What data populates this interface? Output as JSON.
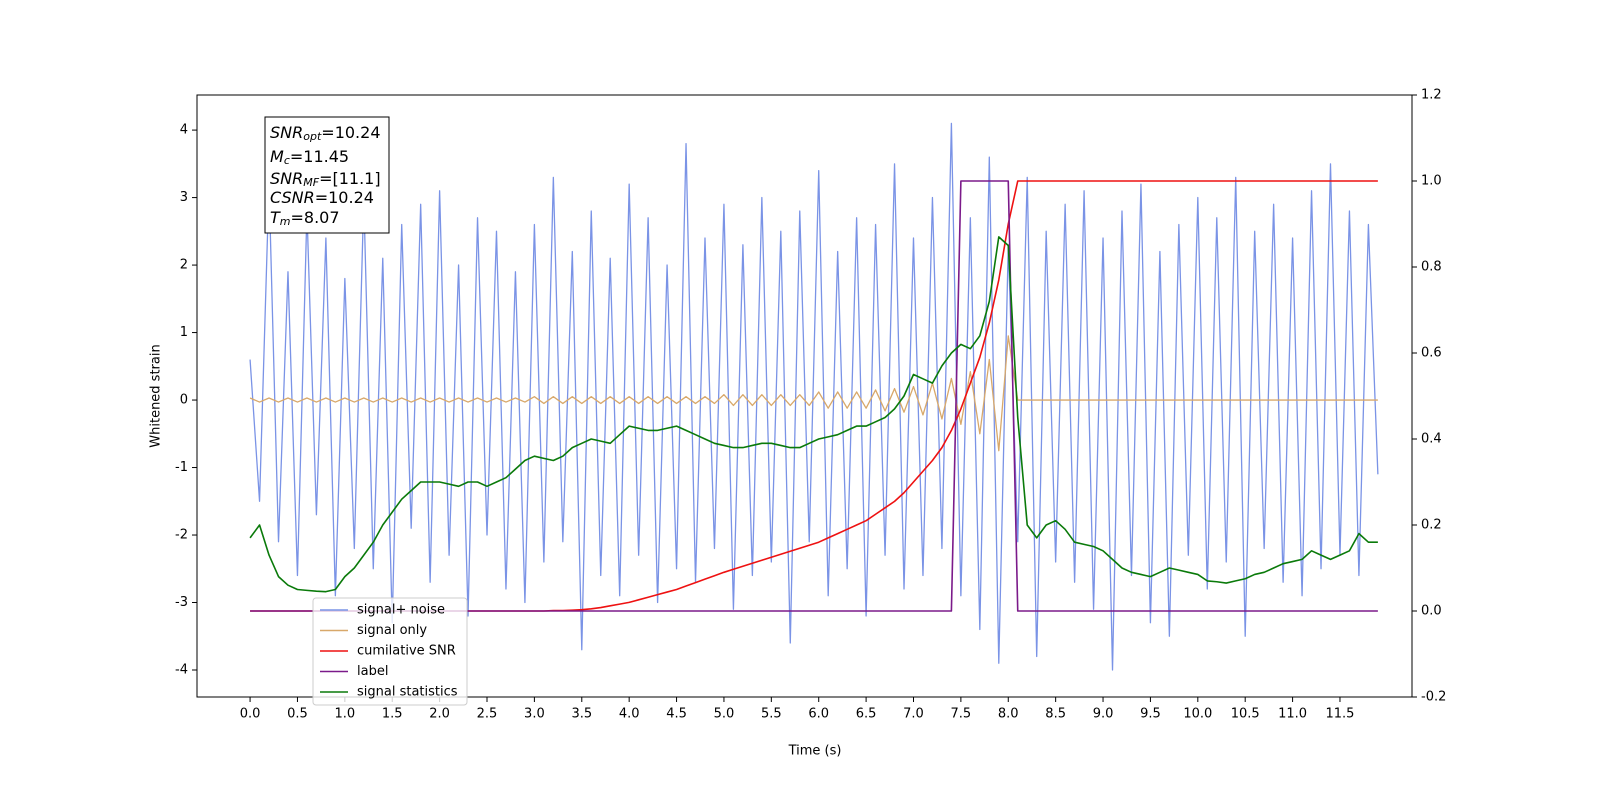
{
  "chart_data": {
    "type": "line",
    "xlabel": "Time (s)",
    "ylabel": "Whitened strain",
    "xlim": [
      -0.56,
      12.26
    ],
    "ylim": [
      -4.4,
      4.52
    ],
    "y2lim": [
      -0.2,
      1.2
    ],
    "xticks": [
      {
        "value": 0,
        "label": "0.0"
      },
      0.5,
      {
        "value": 1,
        "label": "1.0"
      },
      1.5,
      {
        "value": 2,
        "label": "2.0"
      },
      2.5,
      {
        "value": 3,
        "label": "3.0"
      },
      3.5,
      {
        "value": 4,
        "label": "4.0"
      },
      4.5,
      {
        "value": 5,
        "label": "5.0"
      },
      5.5,
      {
        "value": 6,
        "label": "6.0"
      },
      6.5,
      {
        "value": 7,
        "label": "7.0"
      },
      7.5,
      {
        "value": 8,
        "label": "8.0"
      },
      8.5,
      {
        "value": 9,
        "label": "9.0"
      },
      9.5,
      {
        "value": 10,
        "label": "10.0"
      },
      10.5,
      {
        "value": 11,
        "label": "11.0"
      },
      11.5
    ],
    "yticks": [
      -4,
      -3,
      -2,
      -1,
      0,
      1,
      2,
      3,
      4
    ],
    "y2ticks": [
      -0.2,
      {
        "value": 0,
        "label": "0.0"
      },
      0.2,
      0.4,
      0.6,
      0.8,
      {
        "value": 1,
        "label": "1.0"
      },
      1.2
    ],
    "legend": "lower left",
    "annotations": [
      {
        "base": "SNR",
        "sub": "opt",
        "tail": "=10.24"
      },
      {
        "base": "M",
        "sub": "c",
        "tail": "=11.45"
      },
      {
        "base": "SNR",
        "sub": "MF",
        "tail": "=[11.1]"
      },
      {
        "base": "CSNR",
        "sub": null,
        "tail": "=10.24"
      },
      {
        "base": "T",
        "sub": "m",
        "tail": "=8.07"
      }
    ],
    "x": [
      0,
      0.1,
      0.2,
      0.3,
      0.4,
      0.5,
      0.6,
      0.7,
      0.8,
      0.9,
      1,
      1.1,
      1.2,
      1.3,
      1.4,
      1.5,
      1.6,
      1.7,
      1.8,
      1.9,
      2,
      2.1,
      2.2,
      2.3,
      2.4,
      2.5,
      2.6,
      2.7,
      2.8,
      2.9,
      3,
      3.1,
      3.2,
      3.3,
      3.4,
      3.5,
      3.6,
      3.7,
      3.8,
      3.9,
      4,
      4.1,
      4.2,
      4.3,
      4.4,
      4.5,
      4.6,
      4.7,
      4.8,
      4.9,
      5,
      5.1,
      5.2,
      5.3,
      5.4,
      5.5,
      5.6,
      5.7,
      5.8,
      5.9,
      6,
      6.1,
      6.2,
      6.3,
      6.4,
      6.5,
      6.6,
      6.7,
      6.8,
      6.9,
      7,
      7.1,
      7.2,
      7.3,
      7.4,
      7.5,
      7.6,
      7.7,
      7.8,
      7.9,
      8,
      8.1,
      8.2,
      8.3,
      8.4,
      8.5,
      8.6,
      8.7,
      8.8,
      8.9,
      9,
      9.1,
      9.2,
      9.3,
      9.4,
      9.5,
      9.6,
      9.7,
      9.8,
      9.9,
      10,
      10.1,
      10.2,
      10.3,
      10.4,
      10.5,
      10.6,
      10.7,
      10.8,
      10.9,
      11,
      11.1,
      11.2,
      11.3,
      11.4,
      11.5,
      11.6,
      11.7,
      11.8,
      11.9
    ],
    "series": [
      {
        "name": "signal+ noise",
        "color": "#7a93e6",
        "axis": "y",
        "values": [
          0.6,
          -1.5,
          3.2,
          -2.1,
          1.9,
          -2.6,
          2.8,
          -1.7,
          2.4,
          -2.9,
          1.8,
          -2.2,
          3.0,
          -2.5,
          2.1,
          -3.3,
          2.6,
          -1.9,
          2.9,
          -2.7,
          3.1,
          -2.3,
          2.0,
          -3.2,
          2.7,
          -2.0,
          2.5,
          -2.8,
          1.9,
          -3.0,
          2.6,
          -2.4,
          3.3,
          -2.1,
          2.2,
          -3.7,
          2.8,
          -2.6,
          2.1,
          -2.9,
          3.2,
          -2.3,
          2.7,
          -3.0,
          2.0,
          -2.5,
          3.8,
          -2.7,
          2.4,
          -2.2,
          2.9,
          -3.1,
          2.3,
          -2.6,
          3.0,
          -2.4,
          2.5,
          -3.6,
          2.8,
          -2.1,
          3.4,
          -2.9,
          2.2,
          -2.5,
          2.7,
          -3.2,
          2.6,
          -2.3,
          3.5,
          -2.8,
          2.4,
          -2.6,
          3.0,
          -2.2,
          4.1,
          -2.9,
          2.7,
          -3.4,
          3.6,
          -3.9,
          2.3,
          -2.1,
          3.3,
          -3.8,
          2.5,
          -2.4,
          2.9,
          -2.7,
          3.1,
          -3.1,
          2.4,
          -4.0,
          2.8,
          -2.6,
          3.2,
          -3.3,
          2.2,
          -3.5,
          2.6,
          -2.3,
          3.0,
          -2.8,
          2.7,
          -2.4,
          3.3,
          -3.5,
          2.5,
          -2.2,
          2.9,
          -2.7,
          2.4,
          -2.9,
          3.1,
          -2.5,
          3.5,
          -2.3,
          2.8,
          -2.6,
          2.6,
          -1.1
        ]
      },
      {
        "name": "signal only",
        "color": "#d8a86a",
        "axis": "y",
        "values": [
          0.03,
          -0.03,
          0.03,
          -0.03,
          0.03,
          -0.03,
          0.03,
          -0.03,
          0.03,
          -0.03,
          0.03,
          -0.03,
          0.03,
          -0.03,
          0.03,
          -0.03,
          0.03,
          -0.03,
          0.03,
          -0.03,
          0.03,
          -0.03,
          0.03,
          -0.03,
          0.03,
          -0.03,
          0.03,
          -0.03,
          0.03,
          -0.03,
          0.05,
          -0.05,
          0.05,
          -0.05,
          0.05,
          -0.05,
          0.05,
          -0.05,
          0.05,
          -0.05,
          0.05,
          -0.05,
          0.05,
          -0.05,
          0.05,
          -0.05,
          0.05,
          -0.05,
          0.05,
          -0.05,
          0.08,
          -0.08,
          0.08,
          -0.08,
          0.08,
          -0.08,
          0.08,
          -0.08,
          0.08,
          -0.08,
          0.12,
          -0.12,
          0.12,
          -0.12,
          0.12,
          -0.12,
          0.15,
          -0.16,
          0.17,
          -0.18,
          0.2,
          -0.22,
          0.25,
          -0.28,
          0.32,
          -0.36,
          0.42,
          -0.5,
          0.6,
          -0.75,
          0.95,
          0,
          0,
          0,
          0,
          0,
          0,
          0,
          0,
          0,
          0,
          0,
          0,
          0,
          0,
          0,
          0,
          0,
          0,
          0,
          0,
          0,
          0,
          0,
          0,
          0,
          0,
          0,
          0,
          0,
          0,
          0,
          0,
          0,
          0,
          0,
          0,
          0,
          0,
          0
        ]
      },
      {
        "name": "cumilative SNR",
        "color": "#ee1111",
        "axis": "y2",
        "values": [
          0,
          0,
          0,
          0,
          0,
          0,
          0,
          0,
          0,
          0,
          0,
          0,
          0,
          0,
          0,
          0,
          0,
          0,
          0,
          0,
          0,
          0,
          0,
          0,
          0,
          0,
          0,
          0,
          0,
          0,
          0,
          0,
          0.001,
          0.001,
          0.002,
          0.003,
          0.005,
          0.008,
          0.012,
          0.016,
          0.02,
          0.026,
          0.032,
          0.038,
          0.044,
          0.05,
          0.058,
          0.066,
          0.074,
          0.082,
          0.09,
          0.097,
          0.104,
          0.111,
          0.118,
          0.125,
          0.132,
          0.139,
          0.146,
          0.153,
          0.16,
          0.17,
          0.18,
          0.19,
          0.2,
          0.21,
          0.225,
          0.24,
          0.255,
          0.275,
          0.3,
          0.325,
          0.35,
          0.38,
          0.42,
          0.47,
          0.53,
          0.59,
          0.67,
          0.77,
          0.9,
          1,
          1,
          1,
          1,
          1,
          1,
          1,
          1,
          1,
          1,
          1,
          1,
          1,
          1,
          1,
          1,
          1,
          1,
          1,
          1,
          1,
          1,
          1,
          1,
          1,
          1,
          1,
          1,
          1,
          1,
          1,
          1,
          1,
          1,
          1,
          1,
          1,
          1,
          1
        ]
      },
      {
        "name": "label",
        "color": "#7b1a8a",
        "axis": "y2",
        "values": [
          0,
          0,
          0,
          0,
          0,
          0,
          0,
          0,
          0,
          0,
          0,
          0,
          0,
          0,
          0,
          0,
          0,
          0,
          0,
          0,
          0,
          0,
          0,
          0,
          0,
          0,
          0,
          0,
          0,
          0,
          0,
          0,
          0,
          0,
          0,
          0,
          0,
          0,
          0,
          0,
          0,
          0,
          0,
          0,
          0,
          0,
          0,
          0,
          0,
          0,
          0,
          0,
          0,
          0,
          0,
          0,
          0,
          0,
          0,
          0,
          0,
          0,
          0,
          0,
          0,
          0,
          0,
          0,
          0,
          0,
          0,
          0,
          0,
          0,
          0,
          1,
          1,
          1,
          1,
          1,
          1,
          0,
          0,
          0,
          0,
          0,
          0,
          0,
          0,
          0,
          0,
          0,
          0,
          0,
          0,
          0,
          0,
          0,
          0,
          0,
          0,
          0,
          0,
          0,
          0,
          0,
          0,
          0,
          0,
          0,
          0,
          0,
          0,
          0,
          0,
          0,
          0,
          0,
          0,
          0
        ]
      },
      {
        "name": "signal statistics",
        "color": "#0a7a0a",
        "axis": "y2",
        "values": [
          0.17,
          0.2,
          0.13,
          0.08,
          0.06,
          0.05,
          0.048,
          0.046,
          0.045,
          0.05,
          0.08,
          0.1,
          0.13,
          0.16,
          0.2,
          0.23,
          0.26,
          0.28,
          0.3,
          0.3,
          0.3,
          0.295,
          0.29,
          0.3,
          0.3,
          0.29,
          0.3,
          0.31,
          0.33,
          0.35,
          0.36,
          0.355,
          0.35,
          0.36,
          0.38,
          0.39,
          0.4,
          0.395,
          0.39,
          0.41,
          0.43,
          0.425,
          0.42,
          0.42,
          0.425,
          0.43,
          0.42,
          0.41,
          0.4,
          0.39,
          0.385,
          0.38,
          0.38,
          0.385,
          0.39,
          0.39,
          0.385,
          0.38,
          0.38,
          0.39,
          0.4,
          0.405,
          0.41,
          0.42,
          0.43,
          0.43,
          0.44,
          0.45,
          0.47,
          0.5,
          0.55,
          0.54,
          0.53,
          0.57,
          0.6,
          0.62,
          0.61,
          0.64,
          0.72,
          0.87,
          0.85,
          0.45,
          0.2,
          0.17,
          0.2,
          0.21,
          0.19,
          0.16,
          0.155,
          0.15,
          0.14,
          0.12,
          0.1,
          0.09,
          0.085,
          0.08,
          0.09,
          0.1,
          0.095,
          0.09,
          0.085,
          0.07,
          0.068,
          0.065,
          0.07,
          0.075,
          0.085,
          0.09,
          0.1,
          0.11,
          0.115,
          0.12,
          0.14,
          0.13,
          0.12,
          0.13,
          0.14,
          0.18,
          0.16,
          0.16
        ]
      }
    ]
  }
}
